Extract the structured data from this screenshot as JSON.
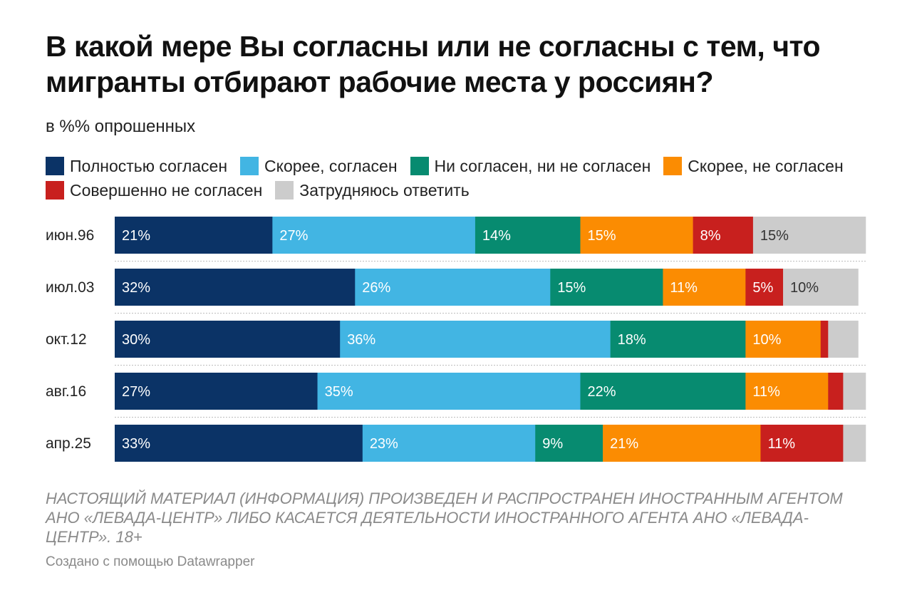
{
  "chart_data": {
    "type": "bar",
    "orientation": "horizontal",
    "stacked": true,
    "title": "В какой мере Вы согласны или не согласны с тем, что мигранты отбирают рабочие места у россиян?",
    "subtitle": "в %% опрошенных",
    "categories": [
      "июн.96",
      "июл.03",
      "окт.12",
      "авг.16",
      "апр.25"
    ],
    "xlim": [
      0,
      100
    ],
    "legend_position": "top",
    "series": [
      {
        "name": "Полностью согласен",
        "color": "#0b3366",
        "label_color": "#ffffff",
        "values": [
          21,
          32,
          30,
          27,
          33
        ],
        "labels": [
          "21%",
          "32%",
          "30%",
          "27%",
          "33%"
        ]
      },
      {
        "name": "Скорее, согласен",
        "color": "#42b5e3",
        "label_color": "#ffffff",
        "values": [
          27,
          26,
          36,
          35,
          23
        ],
        "labels": [
          "27%",
          "26%",
          "36%",
          "35%",
          "23%"
        ]
      },
      {
        "name": "Ни согласен, ни не согласен",
        "color": "#078b70",
        "label_color": "#ffffff",
        "values": [
          14,
          15,
          18,
          22,
          9
        ],
        "labels": [
          "14%",
          "15%",
          "18%",
          "22%",
          "9%"
        ]
      },
      {
        "name": "Скорее, не согласен",
        "color": "#fb8c02",
        "label_color": "#ffffff",
        "values": [
          15,
          11,
          10,
          11,
          21
        ],
        "labels": [
          "15%",
          "11%",
          "10%",
          "11%",
          "21%"
        ]
      },
      {
        "name": "Совершенно не согласен",
        "color": "#c8201e",
        "label_color": "#ffffff",
        "values": [
          8,
          5,
          1,
          2,
          11
        ],
        "labels": [
          "8%",
          "5%",
          "",
          "",
          "11%"
        ]
      },
      {
        "name": "Затрудняюсь ответить",
        "color": "#cccccc",
        "label_color": "#333333",
        "values": [
          15,
          10,
          4,
          3,
          3
        ],
        "labels": [
          "15%",
          "10%",
          "",
          "",
          ""
        ]
      }
    ]
  },
  "footer": {
    "disclaimer": "НАСТОЯЩИЙ МАТЕРИАЛ (ИНФОРМАЦИЯ) ПРОИЗВЕДЕН И РАСПРОСТРАНЕН ИНОСТРАННЫМ АГЕНТОМ АНО «ЛЕВАДА-ЦЕНТР» ЛИБО КАСАЕТСЯ ДЕЯТЕЛЬНОСТИ ИНОСТРАННОГО АГЕНТА АНО «ЛЕВАДА-ЦЕНТР». 18+",
    "credit": "Создано с помощью Datawrapper"
  }
}
